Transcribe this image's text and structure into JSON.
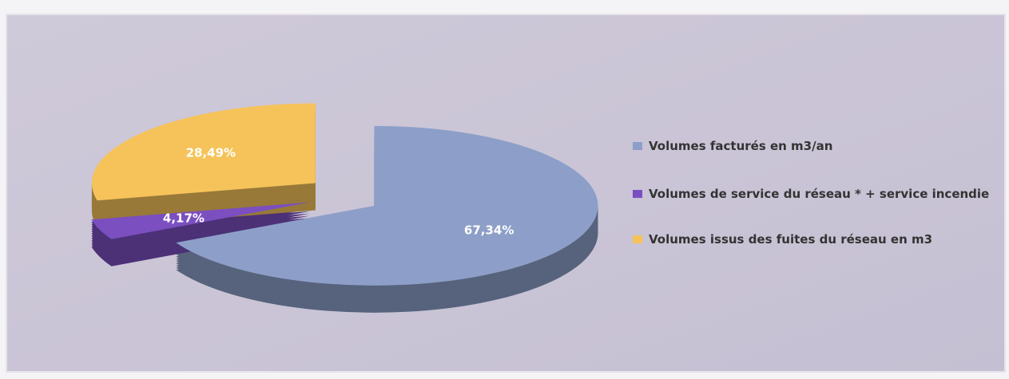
{
  "chart_data": {
    "type": "pie",
    "categories": [
      "Volumes facturés en m3/an",
      "Volumes de service du réseau * + service incendie",
      "Volumes issus des fuites du réseau en m3"
    ],
    "values": [
      67.34,
      4.17,
      28.49
    ],
    "value_labels": [
      "67,34%",
      "4,17%",
      "28,49%"
    ],
    "colors": [
      "#8d9fc8",
      "#7b4fc0",
      "#f5c35a"
    ],
    "legend": "right"
  }
}
